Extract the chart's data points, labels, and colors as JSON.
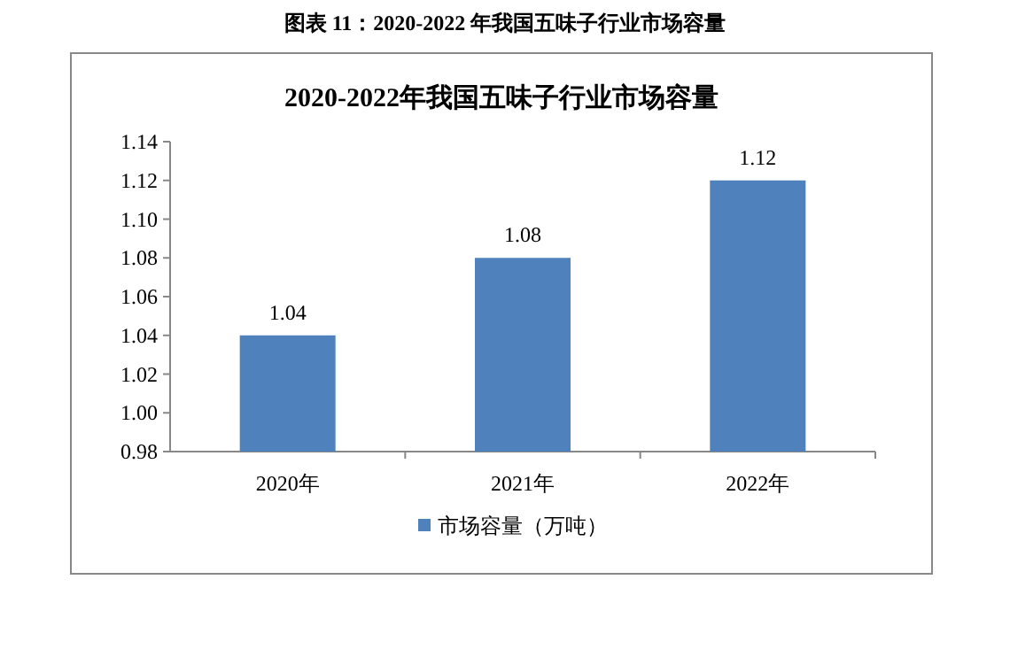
{
  "chart_data": {
    "type": "bar",
    "title": "2020-2022年我国五味子行业市场容量",
    "annotations": [
      "图表 11：2020-2022 年我国五味子行业市场容量"
    ],
    "categories": [
      "2020年",
      "2021年",
      "2022年"
    ],
    "series": [
      {
        "name": "市场容量（万吨）",
        "color": "#4f81bd",
        "values": [
          1.04,
          1.08,
          1.12
        ]
      }
    ],
    "ylim": [
      0.98,
      1.14
    ],
    "yticks": [
      0.98,
      {
        "value": 1.0,
        "label": "1.00"
      },
      1.02,
      1.04,
      1.06,
      1.08,
      {
        "value": 1.1,
        "label": "1.10"
      },
      1.12,
      1.14
    ],
    "data_labels": true,
    "legend": "bottom"
  }
}
